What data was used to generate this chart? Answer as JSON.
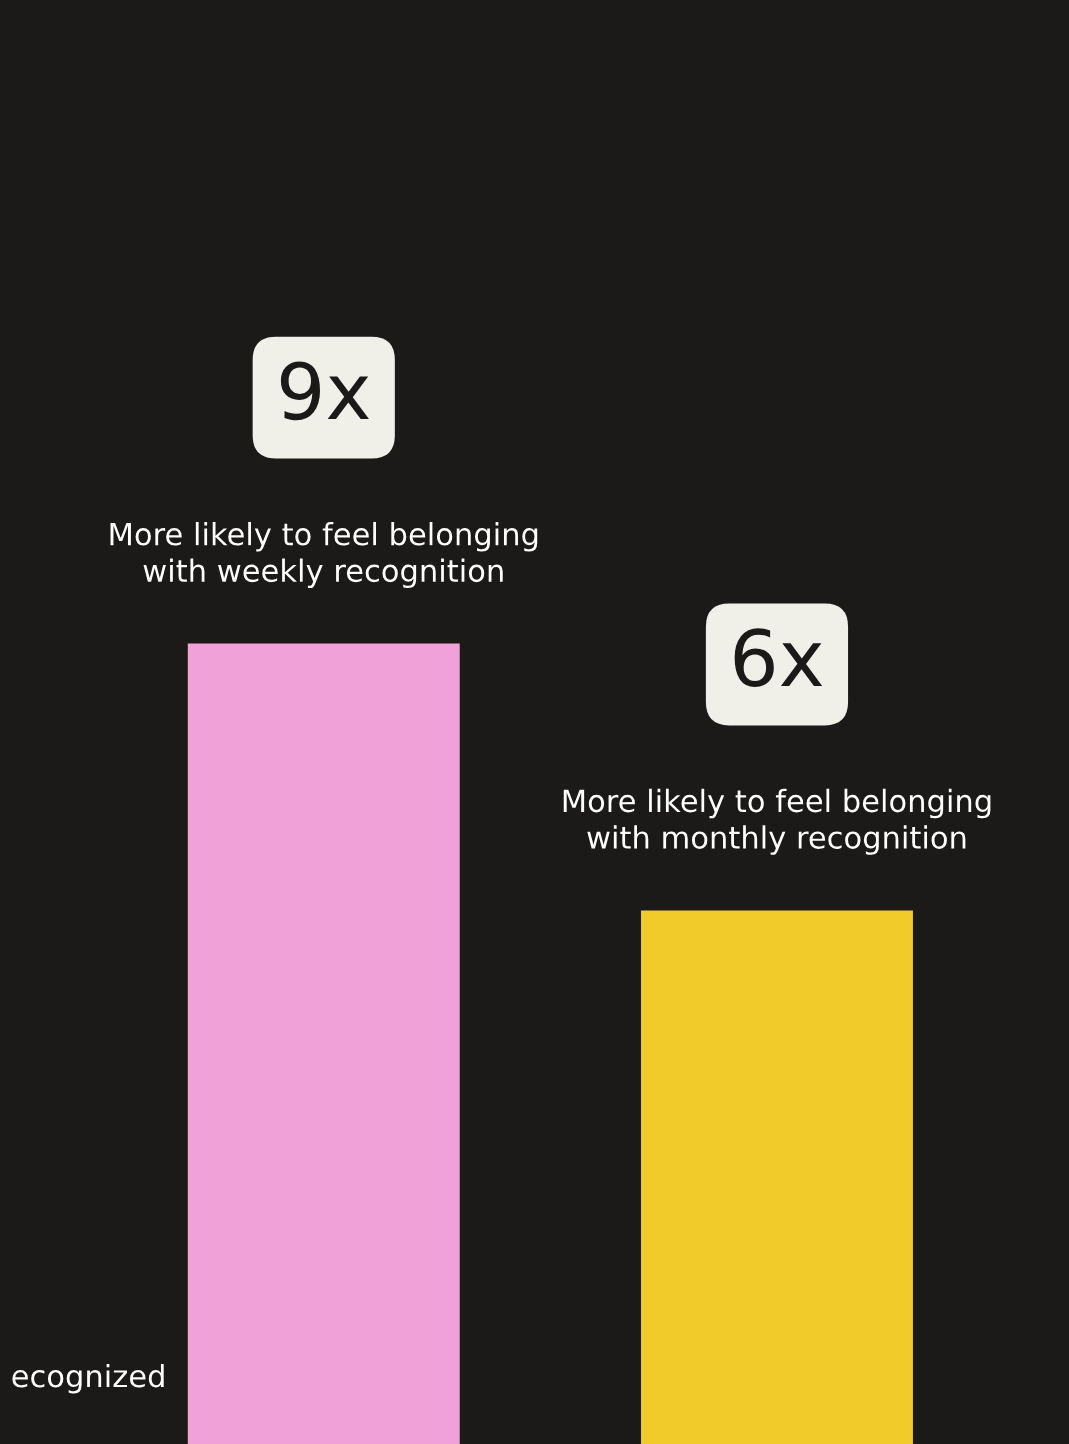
{
  "chart_data": {
    "type": "bar",
    "categories": [
      "More likely to feel belonging\nwith weekly recognition",
      "More likely to feel belonging\nwith monthly recognition"
    ],
    "values": [
      9,
      6
    ],
    "colors": [
      "#f0a1d8",
      "#f0cb2a"
    ],
    "value_labels": [
      "9x",
      "6x"
    ],
    "annotations": [
      "ecognized"
    ]
  }
}
